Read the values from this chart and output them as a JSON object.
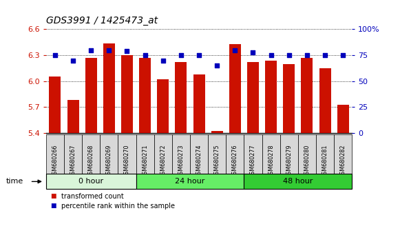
{
  "title": "GDS3991 / 1425473_at",
  "samples": [
    "GSM680266",
    "GSM680267",
    "GSM680268",
    "GSM680269",
    "GSM680270",
    "GSM680271",
    "GSM680272",
    "GSM680273",
    "GSM680274",
    "GSM680275",
    "GSM680276",
    "GSM680277",
    "GSM680278",
    "GSM680279",
    "GSM680280",
    "GSM680281",
    "GSM680282"
  ],
  "transformed_count": [
    6.05,
    5.78,
    6.27,
    6.44,
    6.3,
    6.27,
    6.02,
    6.22,
    6.08,
    5.42,
    6.43,
    6.22,
    6.24,
    6.2,
    6.27,
    6.15,
    5.73
  ],
  "percentile_rank": [
    75,
    70,
    80,
    80,
    79,
    75,
    70,
    75,
    75,
    65,
    80,
    78,
    75,
    75,
    75,
    75,
    75
  ],
  "groups": [
    {
      "label": "0 hour",
      "start": 0,
      "end": 5,
      "color": "#d9f5d9"
    },
    {
      "label": "24 hour",
      "start": 5,
      "end": 11,
      "color": "#66ee66"
    },
    {
      "label": "48 hour",
      "start": 11,
      "end": 17,
      "color": "#33cc33"
    }
  ],
  "ylim_left": [
    5.4,
    6.6
  ],
  "ylim_right": [
    0,
    100
  ],
  "yticks_left": [
    5.4,
    5.7,
    6.0,
    6.3,
    6.6
  ],
  "yticks_right": [
    0,
    25,
    50,
    75,
    100
  ],
  "bar_color": "#cc1100",
  "dot_color": "#0000bb",
  "bg_color": "#ffffff",
  "grid_color": "#000000",
  "tick_label_color_left": "#cc1100",
  "tick_label_color_right": "#0000bb",
  "tick_label_fontsize": 8,
  "label_fontsize": 7
}
